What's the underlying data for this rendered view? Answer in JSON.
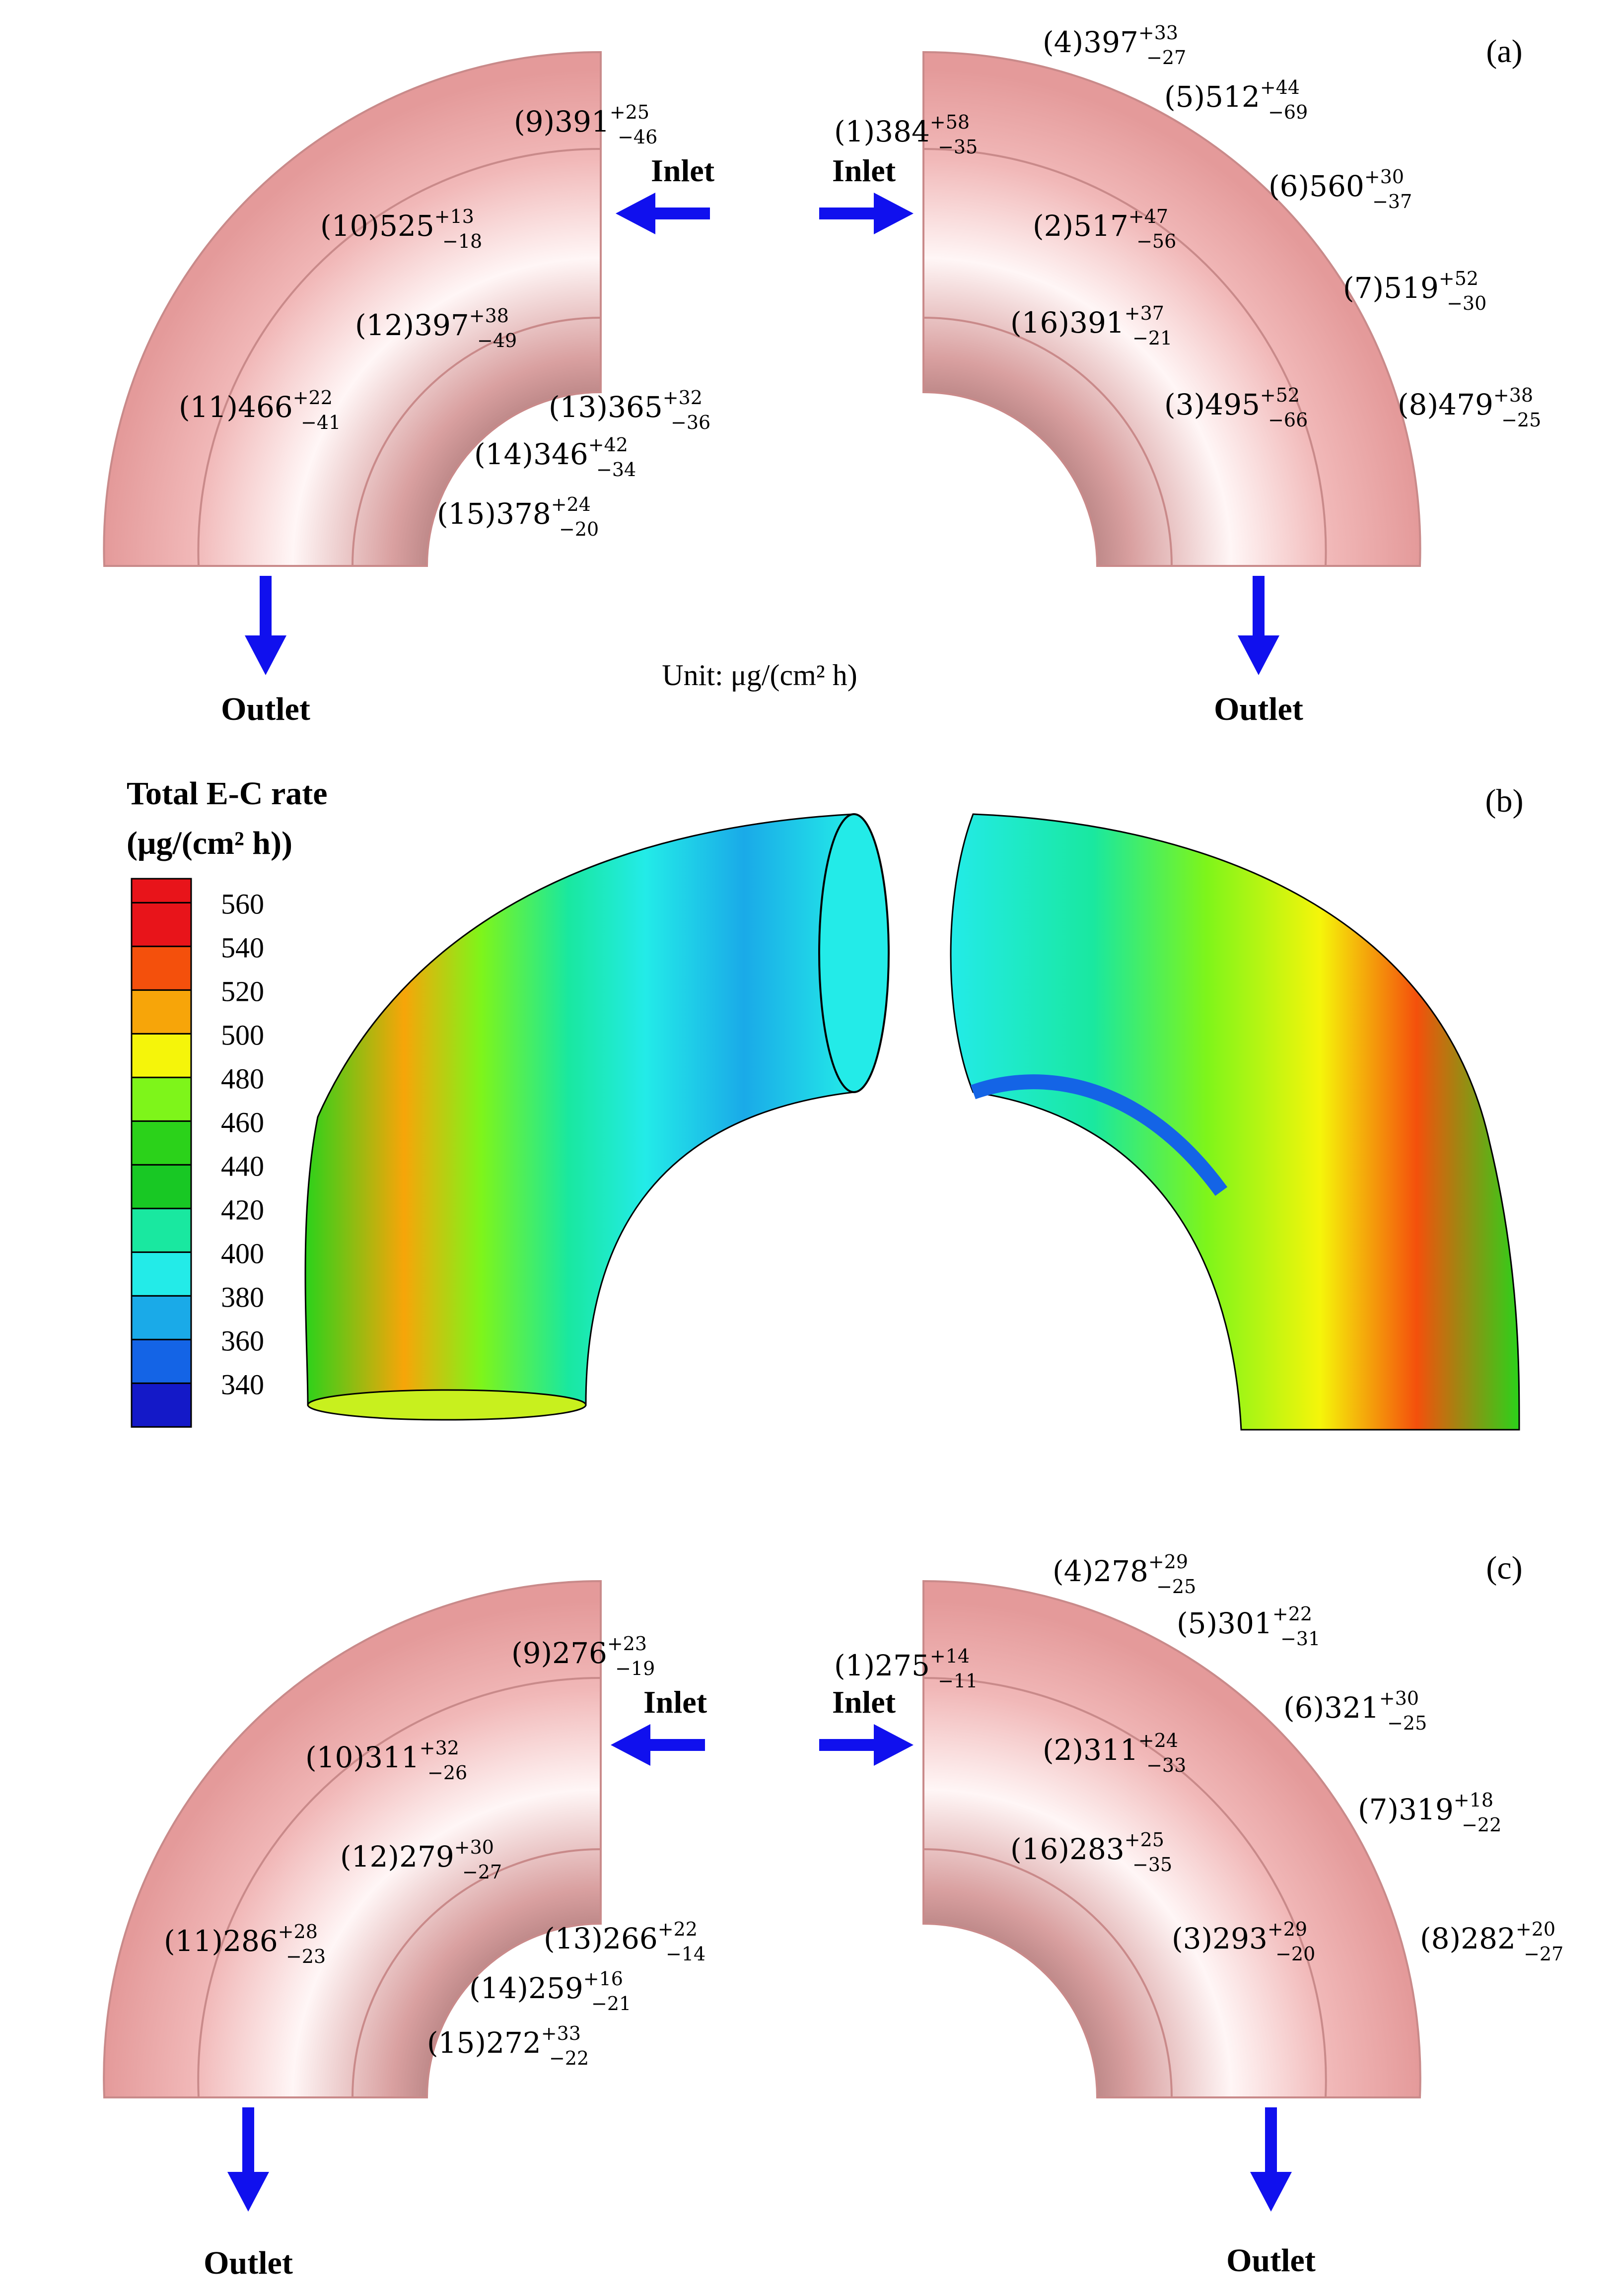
{
  "figure": {
    "panel_a_label": "(a)",
    "panel_b_label": "(b)",
    "panel_c_label": "(c)",
    "unit_text": "Unit: μg/(cm² h)",
    "inlet_label": "Inlet",
    "outlet_label": "Outlet",
    "pipe_color": "#e8a3a3",
    "arrow_color": "#1010ee"
  },
  "panel_a": {
    "left": [
      {
        "id": "(9)",
        "value": "391",
        "plus": "+25",
        "minus": "−46"
      },
      {
        "id": "(10)",
        "value": "525",
        "plus": "+13",
        "minus": "−18"
      },
      {
        "id": "(12)",
        "value": "397",
        "plus": "+38",
        "minus": "−49"
      },
      {
        "id": "(11)",
        "value": "466",
        "plus": "+22",
        "minus": "−41"
      },
      {
        "id": "(13)",
        "value": "365",
        "plus": "+32",
        "minus": "−36"
      },
      {
        "id": "(14)",
        "value": "346",
        "plus": "+42",
        "minus": "−34"
      },
      {
        "id": "(15)",
        "value": "378",
        "plus": "+24",
        "minus": "−20"
      }
    ],
    "right": [
      {
        "id": "(4)",
        "value": "397",
        "plus": "+33",
        "minus": "−27"
      },
      {
        "id": "(1)",
        "value": "384",
        "plus": "+58",
        "minus": "−35"
      },
      {
        "id": "(5)",
        "value": "512",
        "plus": "+44",
        "minus": "−69"
      },
      {
        "id": "(6)",
        "value": "560",
        "plus": "+30",
        "minus": "−37"
      },
      {
        "id": "(2)",
        "value": "517",
        "plus": "+47",
        "minus": "−56"
      },
      {
        "id": "(7)",
        "value": "519",
        "plus": "+52",
        "minus": "−30"
      },
      {
        "id": "(16)",
        "value": "391",
        "plus": "+37",
        "minus": "−21"
      },
      {
        "id": "(3)",
        "value": "495",
        "plus": "+52",
        "minus": "−66"
      },
      {
        "id": "(8)",
        "value": "479",
        "plus": "+38",
        "minus": "−25"
      }
    ]
  },
  "panel_c": {
    "left": [
      {
        "id": "(9)",
        "value": "276",
        "plus": "+23",
        "minus": "−19"
      },
      {
        "id": "(10)",
        "value": "311",
        "plus": "+32",
        "minus": "−26"
      },
      {
        "id": "(12)",
        "value": "279",
        "plus": "+30",
        "minus": "−27"
      },
      {
        "id": "(11)",
        "value": "286",
        "plus": "+28",
        "minus": "−23"
      },
      {
        "id": "(13)",
        "value": "266",
        "plus": "+22",
        "minus": "−14"
      },
      {
        "id": "(14)",
        "value": "259",
        "plus": "+16",
        "minus": "−21"
      },
      {
        "id": "(15)",
        "value": "272",
        "plus": "+33",
        "minus": "−22"
      }
    ],
    "right": [
      {
        "id": "(4)",
        "value": "278",
        "plus": "+29",
        "minus": "−25"
      },
      {
        "id": "(1)",
        "value": "275",
        "plus": "+14",
        "minus": "−11"
      },
      {
        "id": "(5)",
        "value": "301",
        "plus": "+22",
        "minus": "−31"
      },
      {
        "id": "(6)",
        "value": "321",
        "plus": "+30",
        "minus": "−25"
      },
      {
        "id": "(2)",
        "value": "311",
        "plus": "+24",
        "minus": "−33"
      },
      {
        "id": "(7)",
        "value": "319",
        "plus": "+18",
        "minus": "−22"
      },
      {
        "id": "(16)",
        "value": "283",
        "plus": "+25",
        "minus": "−35"
      },
      {
        "id": "(3)",
        "value": "293",
        "plus": "+29",
        "minus": "−20"
      },
      {
        "id": "(8)",
        "value": "282",
        "plus": "+20",
        "minus": "−27"
      }
    ]
  },
  "legend": {
    "title_line1": "Total E-C rate",
    "title_line2": "(μg/(cm² h))",
    "levels": [
      "560",
      "540",
      "520",
      "500",
      "480",
      "460",
      "440",
      "420",
      "400",
      "380",
      "360",
      "340"
    ],
    "colors": [
      "#e8141a",
      "#f4500c",
      "#f7a509",
      "#f5f50a",
      "#7ef51a",
      "#2bd21a",
      "#18c824",
      "#19e8a0",
      "#23ebe8",
      "#1aaae8",
      "#1464e6",
      "#1419c8"
    ]
  }
}
